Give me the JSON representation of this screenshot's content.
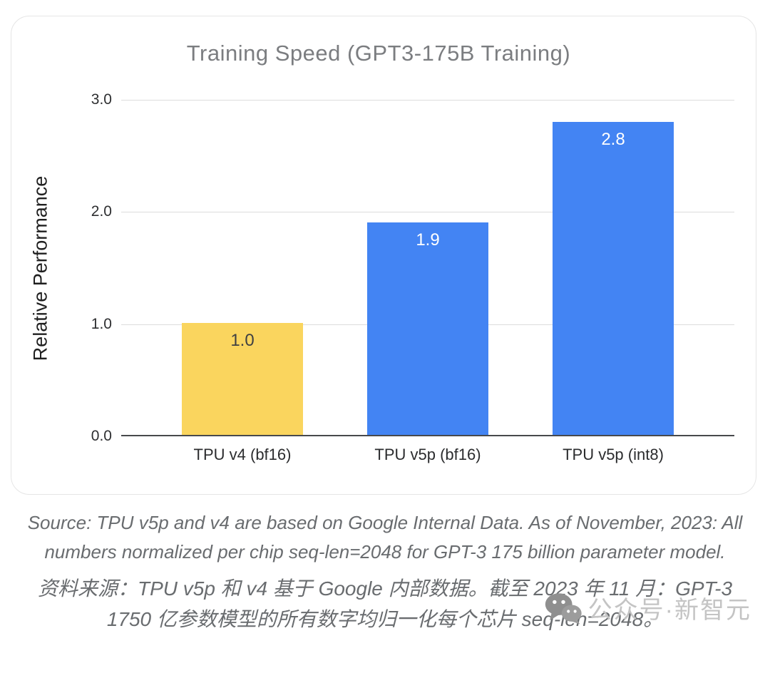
{
  "chart_data": {
    "type": "bar",
    "title": "Training Speed (GPT3-175B Training)",
    "categories": [
      "TPU v4 (bf16)",
      "TPU v5p (bf16)",
      "TPU v5p (int8)"
    ],
    "values": [
      1.0,
      1.9,
      2.8
    ],
    "value_labels": [
      "1.0",
      "1.9",
      "2.8"
    ],
    "bar_colors": [
      "#FAD55E",
      "#4384F3",
      "#4384F3"
    ],
    "value_label_colors": [
      "#3f4042",
      "#ffffff",
      "#ffffff"
    ],
    "xlabel": "",
    "ylabel": "Relative Performance",
    "ylim": [
      0,
      3.0
    ],
    "yticks": [
      "3.0",
      "2.0",
      "1.0",
      "0.0"
    ],
    "grid": true,
    "legend": false
  },
  "captions": {
    "source_en": "Source: TPU v5p and v4 are based on Google Internal Data. As of November, 2023: All numbers normalized per chip seq-len=2048 for GPT-3 175 billion parameter model.",
    "source_zh": "资料来源：TPU v5p 和 v4 基于 Google 内部数据。截至 2023 年 11 月：GPT-3 1750 亿参数模型的所有数字均归一化每个芯片 seq-len=2048。"
  },
  "watermark": {
    "icon": "wechat-icon",
    "text": "公众号·新智元"
  },
  "colors": {
    "bar_yellow": "#FAD55E",
    "bar_blue": "#4384F3",
    "title_gray": "#7b7d80",
    "caption_gray": "#696c6f",
    "watermark_gray": "#c4c4c4",
    "gridline": "#dcdcdc",
    "axis_line": "#47494c"
  }
}
